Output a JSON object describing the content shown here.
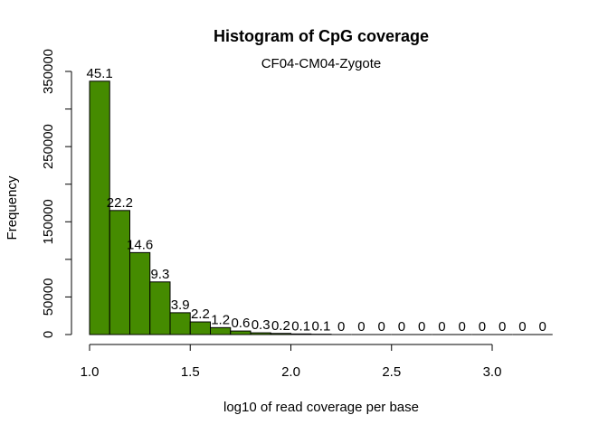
{
  "chart_data": {
    "type": "bar",
    "title": "Histogram of CpG coverage",
    "subtitle": "CF04-CM04-Zygote",
    "xlabel": "log10 of read coverage per base",
    "ylabel": "Frequency",
    "bar_color": "#458B00",
    "bin_edges": [
      1.0,
      1.1,
      1.2,
      1.3,
      1.4,
      1.5,
      1.6,
      1.7,
      1.8,
      1.9,
      2.0,
      2.1,
      2.2,
      2.3,
      2.4,
      2.5,
      2.6,
      2.7,
      2.8,
      2.9,
      3.0,
      3.1,
      3.2,
      3.3
    ],
    "values": [
      337000,
      165000,
      109000,
      70000,
      29000,
      16800,
      9200,
      4700,
      2300,
      1500,
      800,
      400,
      0,
      0,
      0,
      0,
      0,
      0,
      0,
      0,
      0,
      0,
      0
    ],
    "bar_labels": [
      "45.1",
      "22.2",
      "14.6",
      "9.3",
      "3.9",
      "2.2",
      "1.2",
      "0.6",
      "0.3",
      "0.2",
      "0.1",
      "0.1",
      "0",
      "0",
      "0",
      "0",
      "0",
      "0",
      "0",
      "0",
      "0",
      "0",
      "0"
    ],
    "xlim": [
      1.0,
      3.3
    ],
    "ylim": [
      0,
      350000
    ],
    "x_ticks": [
      1.0,
      1.5,
      2.0,
      2.5,
      3.0
    ],
    "x_tick_labels": [
      "1.0",
      "1.5",
      "2.0",
      "2.5",
      "3.0"
    ],
    "y_ticks": [
      0,
      50000,
      100000,
      150000,
      200000,
      250000,
      300000,
      350000
    ],
    "y_tick_labels": [
      "0",
      "50000",
      "",
      "150000",
      "",
      "250000",
      "",
      "350000"
    ],
    "grid": false,
    "legend": "none"
  }
}
